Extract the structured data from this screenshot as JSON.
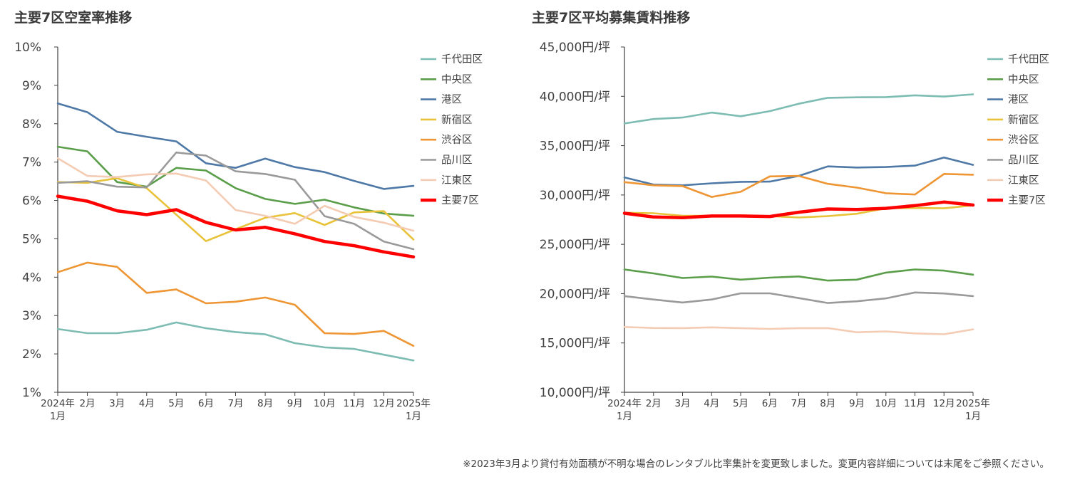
{
  "footnote": "※2023年3月より貸付有効面積が不明な場合のレンタブル比率集計を変更致しました。変更内容詳細については末尾をご参照ください。",
  "chart_data": [
    {
      "type": "line",
      "title": "主要7区空室率推移",
      "ylim": [
        1,
        10
      ],
      "y_ticks": [
        "1%",
        "2%",
        "3%",
        "4%",
        "5%",
        "6%",
        "7%",
        "8%",
        "9%",
        "10%"
      ],
      "categories": [
        "2024年1月",
        "2月",
        "3月",
        "4月",
        "5月",
        "6月",
        "7月",
        "8月",
        "9月",
        "10月",
        "11月",
        "12月",
        "2025年1月"
      ],
      "x_tick_lines": [
        [
          "2024年",
          "1月"
        ],
        [
          "2月"
        ],
        [
          "3月"
        ],
        [
          "4月"
        ],
        [
          "5月"
        ],
        [
          "6月"
        ],
        [
          "7月"
        ],
        [
          "8月"
        ],
        [
          "9月"
        ],
        [
          "10月"
        ],
        [
          "11月"
        ],
        [
          "12月"
        ],
        [
          "2025年",
          "1月"
        ]
      ],
      "legend_position": "right",
      "grid": false,
      "series": [
        {
          "name": "千代田区",
          "color": "#7dbcb2",
          "values": [
            2.65,
            2.54,
            2.54,
            2.63,
            2.82,
            2.67,
            2.57,
            2.51,
            2.28,
            2.17,
            2.13,
            1.98,
            1.83
          ]
        },
        {
          "name": "中央区",
          "color": "#5a9e4a",
          "values": [
            7.4,
            7.28,
            6.48,
            6.36,
            6.85,
            6.78,
            6.32,
            6.04,
            5.91,
            6.02,
            5.82,
            5.66,
            5.6
          ]
        },
        {
          "name": "港区",
          "color": "#4e79a7",
          "values": [
            8.53,
            8.3,
            7.79,
            7.66,
            7.54,
            6.97,
            6.85,
            7.09,
            6.87,
            6.74,
            6.51,
            6.3,
            6.38
          ]
        },
        {
          "name": "新宿区",
          "color": "#e8c33a",
          "values": [
            6.48,
            6.46,
            6.58,
            6.32,
            5.63,
            4.94,
            5.25,
            5.55,
            5.67,
            5.36,
            5.69,
            5.72,
            4.98
          ]
        },
        {
          "name": "渋谷区",
          "color": "#ee9534",
          "values": [
            4.13,
            4.38,
            4.27,
            3.59,
            3.68,
            3.32,
            3.36,
            3.47,
            3.28,
            2.54,
            2.52,
            2.6,
            2.21
          ]
        },
        {
          "name": "品川区",
          "color": "#9a9a9a",
          "values": [
            6.46,
            6.5,
            6.36,
            6.34,
            7.25,
            7.17,
            6.76,
            6.69,
            6.54,
            5.59,
            5.39,
            4.93,
            4.73
          ]
        },
        {
          "name": "江東区",
          "color": "#f4cbb3",
          "values": [
            7.1,
            6.64,
            6.61,
            6.68,
            6.7,
            6.52,
            5.75,
            5.6,
            5.39,
            5.86,
            5.57,
            5.42,
            5.21
          ]
        },
        {
          "name": "主要7区",
          "color": "#ff0000",
          "width": 4.5,
          "values": [
            6.11,
            5.98,
            5.73,
            5.63,
            5.76,
            5.43,
            5.23,
            5.3,
            5.13,
            4.93,
            4.82,
            4.66,
            4.53
          ]
        }
      ]
    },
    {
      "type": "line",
      "title": "主要7区平均募集賃料推移",
      "ylim": [
        10000,
        45000
      ],
      "y_ticks": [
        "10,000円/坪",
        "15,000円/坪",
        "20,000円/坪",
        "25,000円/坪",
        "30,000円/坪",
        "35,000円/坪",
        "40,000円/坪",
        "45,000円/坪"
      ],
      "categories": [
        "2024年1月",
        "2月",
        "3月",
        "4月",
        "5月",
        "6月",
        "7月",
        "8月",
        "9月",
        "10月",
        "11月",
        "12月",
        "2025年1月"
      ],
      "x_tick_lines": [
        [
          "2024年",
          "1月"
        ],
        [
          "2月"
        ],
        [
          "3月"
        ],
        [
          "4月"
        ],
        [
          "5月"
        ],
        [
          "6月"
        ],
        [
          "7月"
        ],
        [
          "8月"
        ],
        [
          "9月"
        ],
        [
          "10月"
        ],
        [
          "11月"
        ],
        [
          "12月"
        ],
        [
          "2025年",
          "1月"
        ]
      ],
      "legend_position": "right",
      "grid": false,
      "series": [
        {
          "name": "千代田区",
          "color": "#7dbcb2",
          "values": [
            37250,
            37700,
            37850,
            38350,
            37980,
            38500,
            39250,
            39850,
            39900,
            39920,
            40100,
            39980,
            40200
          ]
        },
        {
          "name": "中央区",
          "color": "#5a9e4a",
          "values": [
            22450,
            22050,
            21580,
            21730,
            21420,
            21620,
            21740,
            21320,
            21420,
            22130,
            22450,
            22330,
            21920
          ]
        },
        {
          "name": "港区",
          "color": "#4e79a7",
          "values": [
            31780,
            31050,
            30980,
            31180,
            31330,
            31350,
            31930,
            32900,
            32780,
            32830,
            32980,
            33800,
            33050
          ]
        },
        {
          "name": "新宿区",
          "color": "#e8c33a",
          "values": [
            28200,
            28150,
            27900,
            27900,
            27930,
            27850,
            27720,
            27850,
            28100,
            28650,
            28680,
            28650,
            28950
          ]
        },
        {
          "name": "渋谷区",
          "color": "#ee9534",
          "values": [
            31300,
            30980,
            30900,
            29800,
            30320,
            31880,
            31930,
            31130,
            30750,
            30180,
            30050,
            32130,
            32050
          ]
        },
        {
          "name": "品川区",
          "color": "#9a9a9a",
          "values": [
            19750,
            19400,
            19100,
            19400,
            20030,
            20030,
            19550,
            19050,
            19220,
            19520,
            20120,
            20020,
            19750
          ]
        },
        {
          "name": "江東区",
          "color": "#f4cbb3",
          "values": [
            16620,
            16520,
            16500,
            16580,
            16500,
            16420,
            16500,
            16500,
            16080,
            16170,
            15970,
            15880,
            16380
          ]
        },
        {
          "name": "主要7区",
          "color": "#ff0000",
          "width": 4.5,
          "values": [
            28150,
            27770,
            27700,
            27870,
            27870,
            27820,
            28250,
            28580,
            28530,
            28650,
            28920,
            29280,
            28980
          ]
        }
      ]
    }
  ]
}
